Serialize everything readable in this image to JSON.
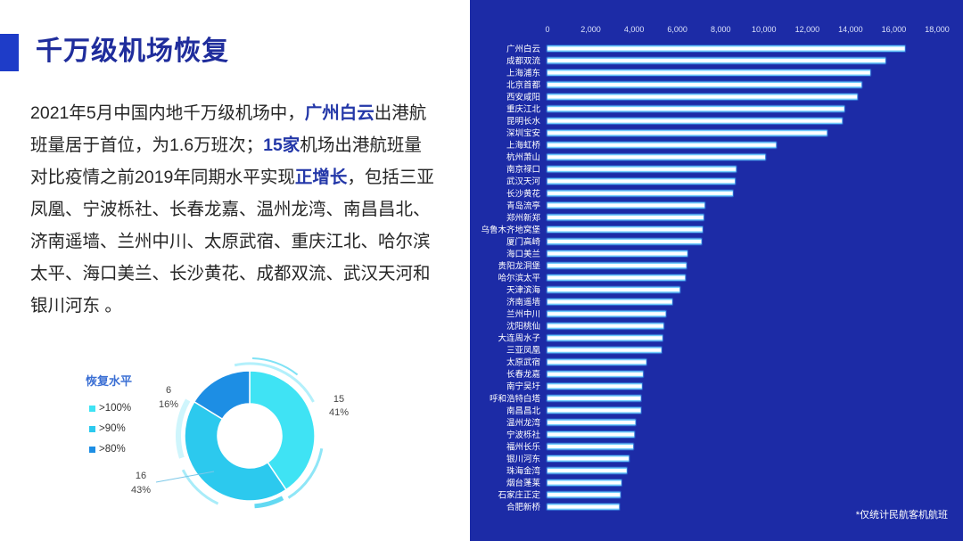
{
  "title": "千万级机场恢复",
  "intro": {
    "lines": [
      [
        {
          "text": "2021年5月中国内地千万级机场中，"
        },
        {
          "text": "广州白云",
          "highlight": true
        },
        {
          "text": "出港航"
        }
      ],
      [
        {
          "text": "班量居于首位，为1.6万班次；"
        },
        {
          "text": "15家",
          "highlight": true
        },
        {
          "text": "机场出港航班量"
        }
      ],
      [
        {
          "text": "对比疫情之前2019年同期水平实现"
        },
        {
          "text": "正增长",
          "highlight": true
        },
        {
          "text": "，包括三亚"
        }
      ],
      [
        {
          "text": "凤凰、宁波栎社、长春龙嘉、温州龙湾、南昌昌北、"
        }
      ],
      [
        {
          "text": "济南遥墙、兰州中川、太原武宿、重庆江北、哈尔滨"
        }
      ],
      [
        {
          "text": "太平、海口美兰、长沙黄花、成都双流、武汉天河和"
        }
      ],
      [
        {
          "text": "银川河东 。"
        }
      ]
    ]
  },
  "colors": {
    "accent": "#1e3cc8",
    "title": "#1f2d9c",
    "highlight": "#2337a8",
    "legend_title": "#3b6fd4",
    "panel": "#1c2ba6",
    "bar_glow_outer": "#3fa8ff",
    "bar_glow_inner": "#74d2ff",
    "bar_core": "#ffffff"
  },
  "chart_data": [
    {
      "type": "pie",
      "donut": true,
      "legend_title": "恢复水平",
      "legend_position": "left",
      "categories": [
        ">100%",
        ">90%",
        ">80%"
      ],
      "values": [
        15,
        16,
        6
      ],
      "percent_labels": [
        "41%",
        "43%",
        "16%"
      ],
      "colors": [
        "#3fe3f4",
        "#2cc9ee",
        "#1d8ee4"
      ]
    },
    {
      "type": "bar",
      "orientation": "horizontal",
      "grid": false,
      "xlim": [
        0,
        18000
      ],
      "xticks": [
        0,
        2000,
        4000,
        6000,
        8000,
        10000,
        12000,
        14000,
        16000,
        18000
      ],
      "xtick_labels": [
        "0",
        "2,000",
        "4,000",
        "6,000",
        "8,000",
        "10,000",
        "12,000",
        "14,000",
        "16,000",
        "18,000"
      ],
      "categories": [
        "广州白云",
        "成都双流",
        "上海浦东",
        "北京首都",
        "西安咸阳",
        "重庆江北",
        "昆明长水",
        "深圳宝安",
        "上海虹桥",
        "杭州萧山",
        "南京禄口",
        "武汉天河",
        "长沙黄花",
        "青岛流亭",
        "郑州新郑",
        "乌鲁木齐地窝堡",
        "厦门高崎",
        "海口美兰",
        "贵阳龙洞堡",
        "哈尔滨太平",
        "天津滨海",
        "济南遥墙",
        "兰州中川",
        "沈阳桃仙",
        "大连周水子",
        "三亚凤凰",
        "太原武宿",
        "长春龙嘉",
        "南宁吴圩",
        "呼和浩特白塔",
        "南昌昌北",
        "温州龙湾",
        "宁波栎社",
        "福州长乐",
        "银川河东",
        "珠海金湾",
        "烟台蓬莱",
        "石家庄正定",
        "合肥新桥"
      ],
      "values": [
        16500,
        15600,
        14900,
        14500,
        14300,
        13700,
        13600,
        12900,
        10550,
        10050,
        8700,
        8650,
        8550,
        7250,
        7200,
        7150,
        7100,
        6450,
        6400,
        6350,
        6100,
        5750,
        5450,
        5350,
        5300,
        5250,
        4550,
        4400,
        4350,
        4300,
        4300,
        4050,
        4000,
        3950,
        3750,
        3650,
        3400,
        3350,
        3300
      ]
    }
  ],
  "footnote": "*仅统计民航客机航班"
}
